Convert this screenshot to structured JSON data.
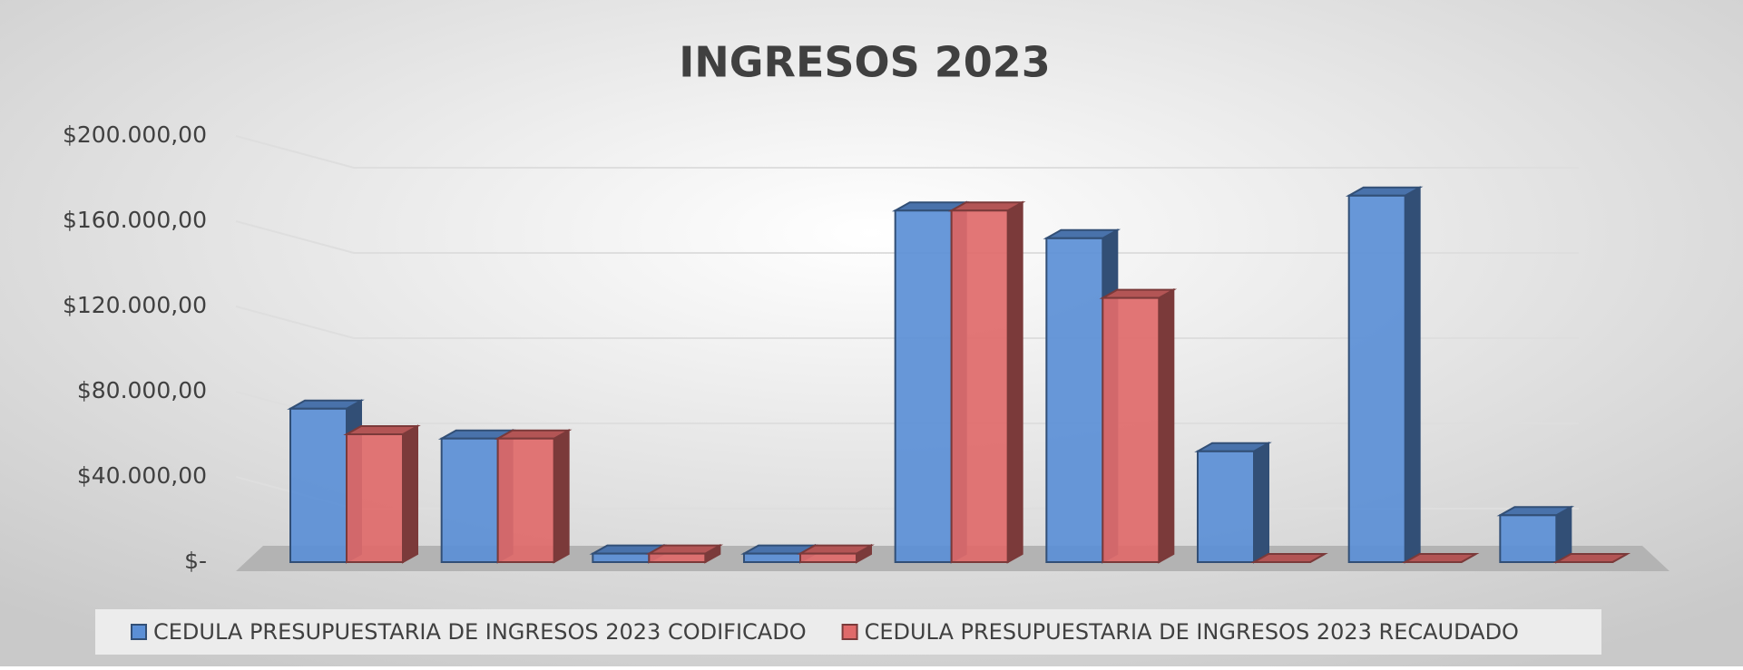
{
  "chart_data": {
    "type": "bar3d",
    "title": "INGRESOS 2023",
    "categories": [
      null,
      null,
      null,
      null,
      null,
      null,
      null,
      null,
      null
    ],
    "series": [
      {
        "name": "CEDULA PRESUPUESTARIA DE INGRESOS 2023 CODIFICADO",
        "color": "#5b8fd6",
        "values": [
          72000,
          58000,
          4000,
          4000,
          165000,
          152000,
          52000,
          172000,
          22000
        ]
      },
      {
        "name": "CEDULA PRESUPUESTARIA DE INGRESOS 2023 RECAUDADO",
        "color": "#e06a6a",
        "values": [
          60000,
          58000,
          4000,
          4000,
          165000,
          124000,
          0,
          0,
          0
        ]
      }
    ],
    "ylim": [
      0,
      200000
    ],
    "yticks": [
      {
        "value": 0,
        "label": "$-"
      },
      {
        "value": 40000,
        "label": "$40.000,00"
      },
      {
        "value": 80000,
        "label": "$80.000,00"
      },
      {
        "value": 120000,
        "label": "$120.000,00"
      },
      {
        "value": 160000,
        "label": "$160.000,00"
      },
      {
        "value": 200000,
        "label": "$200.000,00"
      }
    ],
    "grid": true
  }
}
